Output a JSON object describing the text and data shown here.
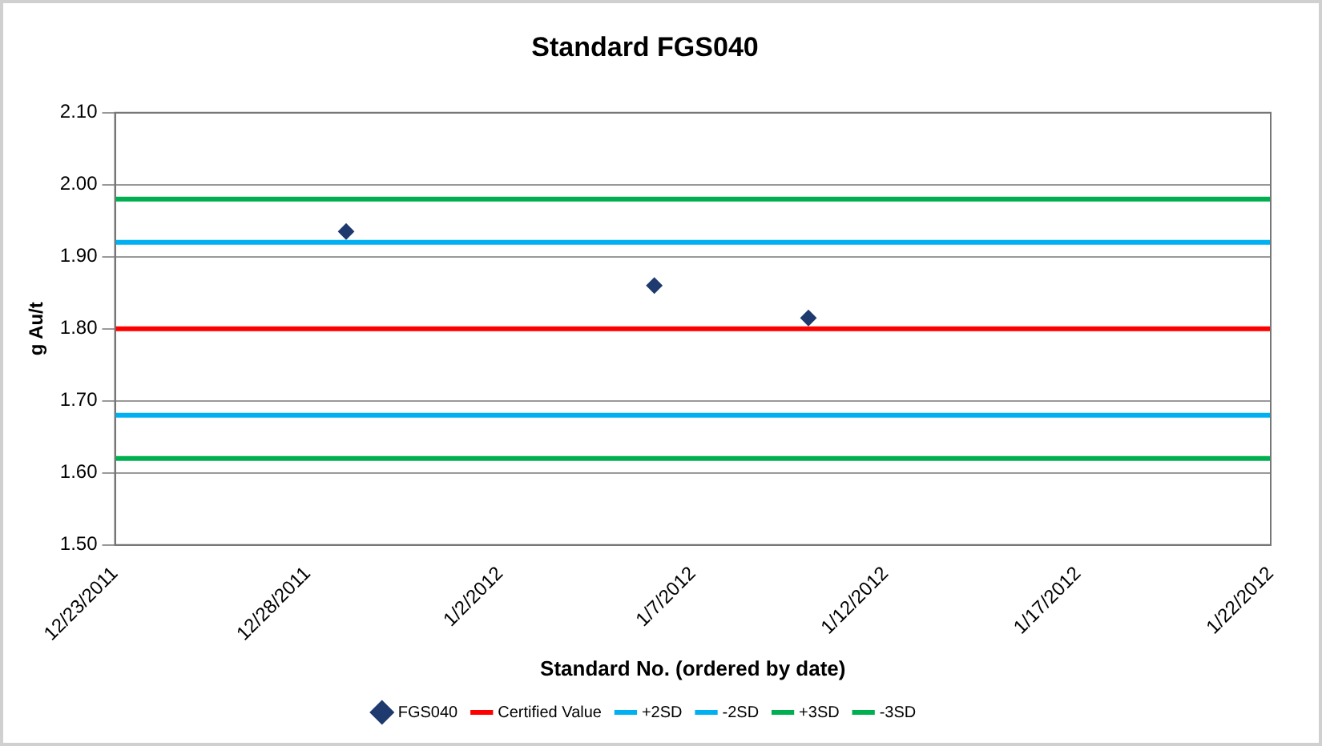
{
  "chart_data": {
    "type": "scatter",
    "title": "Standard FGS040",
    "xlabel": "Standard No. (ordered by date)",
    "ylabel": "g Au/t",
    "series": [
      {
        "name": "FGS040",
        "color": "#1f3a6e",
        "x": [
          "2011-12-29",
          "2012-01-06",
          "2012-01-10"
        ],
        "values": [
          1.935,
          1.86,
          1.815
        ]
      }
    ],
    "ref_lines": [
      {
        "axis": "y",
        "value": 1.8,
        "label": "Certified Value",
        "color": "#ff0000"
      },
      {
        "axis": "y",
        "value": 1.92,
        "label": "+2SD",
        "color": "#00b0f0"
      },
      {
        "axis": "y",
        "value": 1.68,
        "label": "-2SD",
        "color": "#00b0f0"
      },
      {
        "axis": "y",
        "value": 1.98,
        "label": "+3SD",
        "color": "#00b050"
      },
      {
        "axis": "y",
        "value": 1.62,
        "label": "-3SD",
        "color": "#00b050"
      }
    ],
    "xlim": [
      "2011-12-23",
      "2012-01-22"
    ],
    "xticks": [
      {
        "value": "2011-12-23",
        "label": "12/23/2011"
      },
      {
        "value": "2011-12-28",
        "label": "12/28/2011"
      },
      {
        "value": "2012-01-02",
        "label": "1/2/2012"
      },
      {
        "value": "2012-01-07",
        "label": "1/7/2012"
      },
      {
        "value": "2012-01-12",
        "label": "1/12/2012"
      },
      {
        "value": "2012-01-17",
        "label": "1/17/2012"
      },
      {
        "value": "2012-01-22",
        "label": "1/22/2012"
      }
    ],
    "ylim": [
      1.5,
      2.1
    ],
    "yticks": [
      {
        "value": 1.5,
        "label": "1.50"
      },
      {
        "value": 1.6,
        "label": "1.60"
      },
      {
        "value": 1.7,
        "label": "1.70"
      },
      {
        "value": 1.8,
        "label": "1.80"
      },
      {
        "value": 1.9,
        "label": "1.90"
      },
      {
        "value": 2.0,
        "label": "2.00"
      },
      {
        "value": 2.1,
        "label": "2.10"
      }
    ],
    "grid": "y",
    "legend": "bottom",
    "marker": "diamond"
  }
}
